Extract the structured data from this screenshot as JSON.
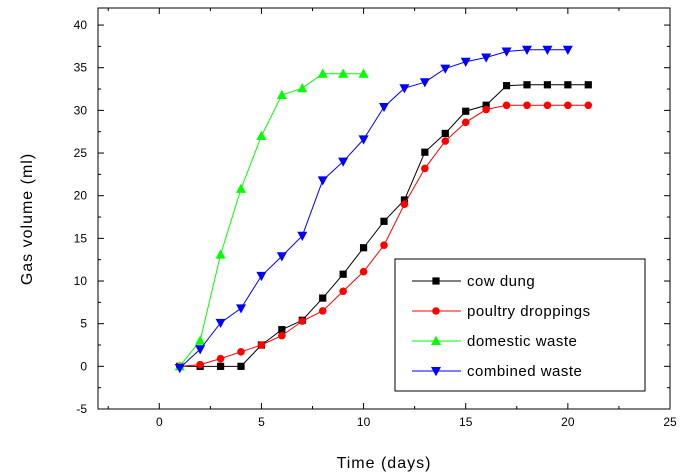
{
  "chart_data": {
    "type": "line",
    "title": "",
    "xlabel": "Time (days)",
    "ylabel": "Gas volume (ml)",
    "xlim": [
      -3,
      25
    ],
    "ylim": [
      -5,
      42
    ],
    "xticks": [
      0,
      5,
      10,
      15,
      20,
      25
    ],
    "yticks": [
      -5,
      0,
      5,
      10,
      15,
      20,
      25,
      30,
      35,
      40
    ],
    "grid": false,
    "legend_position": "bottom-right",
    "series": [
      {
        "name": "cow dung",
        "color": "#000000",
        "marker": "square",
        "x": [
          1,
          2,
          3,
          4,
          5,
          6,
          7,
          8,
          9,
          10,
          11,
          12,
          13,
          14,
          15,
          16,
          17,
          18,
          19,
          20,
          21
        ],
        "y": [
          0,
          0,
          0,
          0,
          2.5,
          4.3,
          5.4,
          8.0,
          10.8,
          13.9,
          17.0,
          19.5,
          25.1,
          27.3,
          29.9,
          30.6,
          32.9,
          33.0,
          33.0,
          33.0,
          33.0
        ]
      },
      {
        "name": "poultry droppings",
        "color": "#ff0000",
        "marker": "circle",
        "x": [
          1,
          2,
          3,
          4,
          5,
          6,
          7,
          8,
          9,
          10,
          11,
          12,
          13,
          14,
          15,
          16,
          17,
          18,
          19,
          20,
          21
        ],
        "y": [
          0,
          0.2,
          0.9,
          1.7,
          2.5,
          3.6,
          5.3,
          6.5,
          8.8,
          11.1,
          14.2,
          19.0,
          23.2,
          26.4,
          28.6,
          30.1,
          30.6,
          30.6,
          30.6,
          30.6,
          30.6
        ]
      },
      {
        "name": "domestic waste",
        "color": "#00ff00",
        "marker": "triangle-up",
        "x": [
          1,
          2,
          3,
          4,
          5,
          6,
          7,
          8,
          9,
          10
        ],
        "y": [
          0,
          3.0,
          13.1,
          20.8,
          27.0,
          31.8,
          32.6,
          34.3,
          34.3,
          34.3
        ]
      },
      {
        "name": "combined waste",
        "color": "#0000ff",
        "marker": "triangle-down",
        "x": [
          1,
          2,
          3,
          4,
          5,
          6,
          7,
          8,
          9,
          10,
          11,
          12,
          13,
          14,
          15,
          16,
          17,
          18,
          19,
          20
        ],
        "y": [
          -0.2,
          2.0,
          5.1,
          6.8,
          10.6,
          12.9,
          15.3,
          21.8,
          24.0,
          26.6,
          30.4,
          32.6,
          33.3,
          34.9,
          35.7,
          36.2,
          36.9,
          37.1,
          37.1,
          37.1
        ]
      }
    ]
  }
}
